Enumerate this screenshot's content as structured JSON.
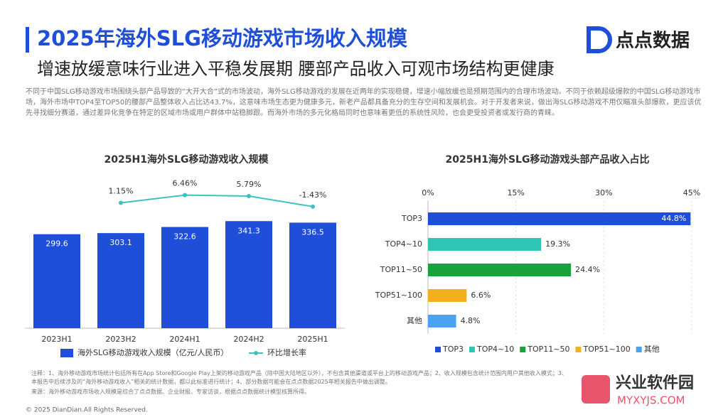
{
  "header": {
    "title": "2025年海外SLG移动游戏市场收入规模",
    "subtitle": "增速放缓意味行业进入平稳发展期 腰部产品收入可观市场结构更健康",
    "logo": "点点数据"
  },
  "body": "不同于中国SLG移动游戏市场围绕头部产品导致的“大开大合”式的市场波动，海外SLG移动游戏的发展在近两年的实现稳健，增速小幅放缓也是预期范围内的合理市场波动。不同于依赖超级爆款的中国SLG移动游戏市场，海外市场中TOP4至TOP50的腰部产品整体收入占比达43.7%，这意味市场生态更为健康多元，新老产品都具备充分的生存空间和发展机会。对于开发者来说，做出海SLG移动游戏不用仅瞄准头部爆款，更应该优先寻找细分赛道，通过差异化竞争在特定的区域市场或用户群体中站稳脚跟。而海外市场的多元化格局同时也意味着更低的系统性风险，也会更受投资者或发行商的青睐。",
  "chart_data": [
    {
      "type": "bar",
      "title": "2025H1海外SLG移动游戏收入规模",
      "categories": [
        "2023H1",
        "2023H2",
        "2024H1",
        "2024H2",
        "2025H1"
      ],
      "series": [
        {
          "name": "海外SLG移动游戏收入规模（亿元/人民币）",
          "color": "#1f4fd8",
          "values": [
            299.6,
            303.1,
            322.6,
            341.3,
            336.5
          ]
        },
        {
          "name": "环比增长率",
          "type": "line",
          "axis": "y2",
          "color": "#3cc3c0",
          "values": [
            null,
            1.15,
            6.46,
            5.79,
            -1.43
          ],
          "value_labels": [
            null,
            "1.15%",
            "6.46%",
            "5.79%",
            "-1.43%"
          ]
        }
      ],
      "ylim": [
        0,
        480
      ],
      "y2lim": [
        -85,
        18.5
      ],
      "legend": "bottom"
    },
    {
      "type": "hbar",
      "title": "2025H1海外SLG移动游戏头部产品收入占比",
      "categories": [
        "TOP3",
        "TOP4~10",
        "TOP11~50",
        "TOP51~100",
        "其他"
      ],
      "values": [
        44.8,
        19.3,
        24.4,
        6.6,
        4.8
      ],
      "value_labels": [
        "44.8%",
        "19.3%",
        "24.4%",
        "6.6%",
        "4.8%"
      ],
      "colors": [
        "#1f4fd8",
        "#2ec4b6",
        "#1aa33c",
        "#f2b01e",
        "#4aa3f0"
      ],
      "xlim": [
        0,
        45
      ],
      "xticks": [
        {
          "value": 0,
          "label": "0%"
        },
        {
          "value": 15,
          "label": "15%"
        },
        {
          "value": 30,
          "label": "30%"
        },
        {
          "value": 45,
          "label": "45%"
        }
      ],
      "grid": true,
      "legend": "bottom"
    }
  ],
  "notes": [
    "注释：1、海外移动游戏市场统计包括所有在App Store和Google Play上架的移动游戏产品（除中国大陆地区以外），不包含其他渠道或平台上的移动游戏产品；2、收入规模包含统计范围内用户其他收入模式；3、本报告中后续涉及的“海外移动游戏收入”相关的统计数据，都以此标准进行统计；4、部分数据可能会在点点数据2025年相关报告中做出调整。",
    "来源：海外移动游戏市场收入规模是综合了点点数据、企业财报、专家访谈，根据点点数据统计模型核算所得。"
  ],
  "footer": "© 2025 DianDian.All Rights Reserved.",
  "watermark": {
    "name": "兴业软件园",
    "url": "MYXYJS.COM"
  }
}
